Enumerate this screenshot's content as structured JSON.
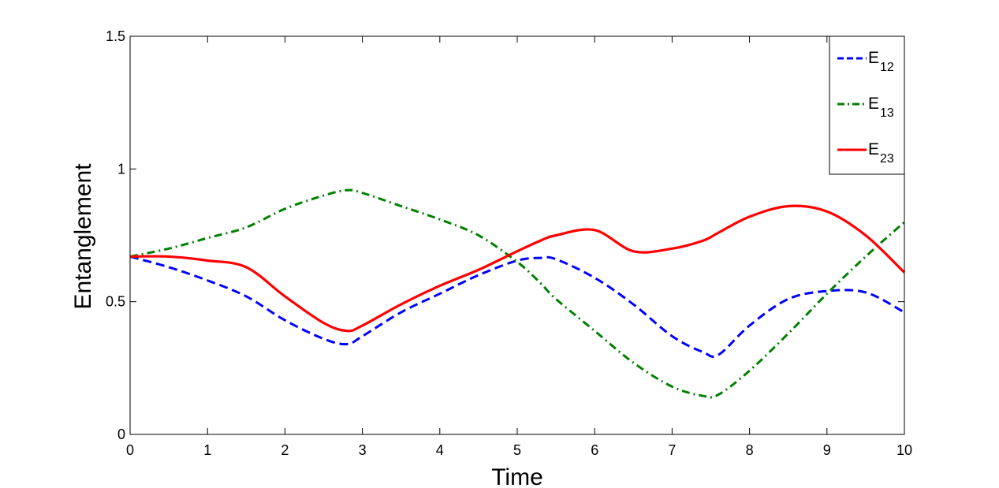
{
  "chart_data": {
    "type": "line",
    "title": "",
    "xlabel": "Time",
    "ylabel": "Entanglement",
    "xlim": [
      0,
      10
    ],
    "ylim": [
      0,
      1.5
    ],
    "xticks": [
      "0",
      "1",
      "2",
      "3",
      "4",
      "5",
      "6",
      "7",
      "8",
      "9",
      "10"
    ],
    "yticks": [
      "0",
      "0.5",
      "1",
      "1.5"
    ],
    "grid": false,
    "legend_position": "top-right",
    "x": [
      0,
      0.5,
      1,
      1.5,
      2,
      2.5,
      2.8,
      3,
      3.5,
      4,
      4.5,
      5,
      5.3,
      5.5,
      6,
      6.5,
      7,
      7.4,
      7.6,
      8,
      8.5,
      9,
      9.5,
      10
    ],
    "series": [
      {
        "name": "E",
        "name_sub": "12",
        "color": "#0000ff",
        "style": "dashed",
        "values": [
          0.67,
          0.63,
          0.58,
          0.52,
          0.43,
          0.36,
          0.34,
          0.37,
          0.46,
          0.53,
          0.6,
          0.655,
          0.665,
          0.66,
          0.59,
          0.49,
          0.37,
          0.31,
          0.3,
          0.41,
          0.51,
          0.54,
          0.535,
          0.46
        ]
      },
      {
        "name": "E",
        "name_sub": "13",
        "color": "#008000",
        "style": "dashdot",
        "values": [
          0.67,
          0.7,
          0.74,
          0.78,
          0.85,
          0.9,
          0.92,
          0.91,
          0.86,
          0.81,
          0.75,
          0.65,
          0.57,
          0.51,
          0.39,
          0.27,
          0.18,
          0.145,
          0.15,
          0.24,
          0.38,
          0.53,
          0.67,
          0.8
        ]
      },
      {
        "name": "E",
        "name_sub": "23",
        "color": "#ff0000",
        "style": "solid",
        "values": [
          0.67,
          0.67,
          0.655,
          0.63,
          0.52,
          0.42,
          0.39,
          0.41,
          0.49,
          0.56,
          0.62,
          0.69,
          0.73,
          0.75,
          0.77,
          0.69,
          0.7,
          0.73,
          0.76,
          0.82,
          0.86,
          0.84,
          0.75,
          0.61
        ]
      }
    ]
  }
}
